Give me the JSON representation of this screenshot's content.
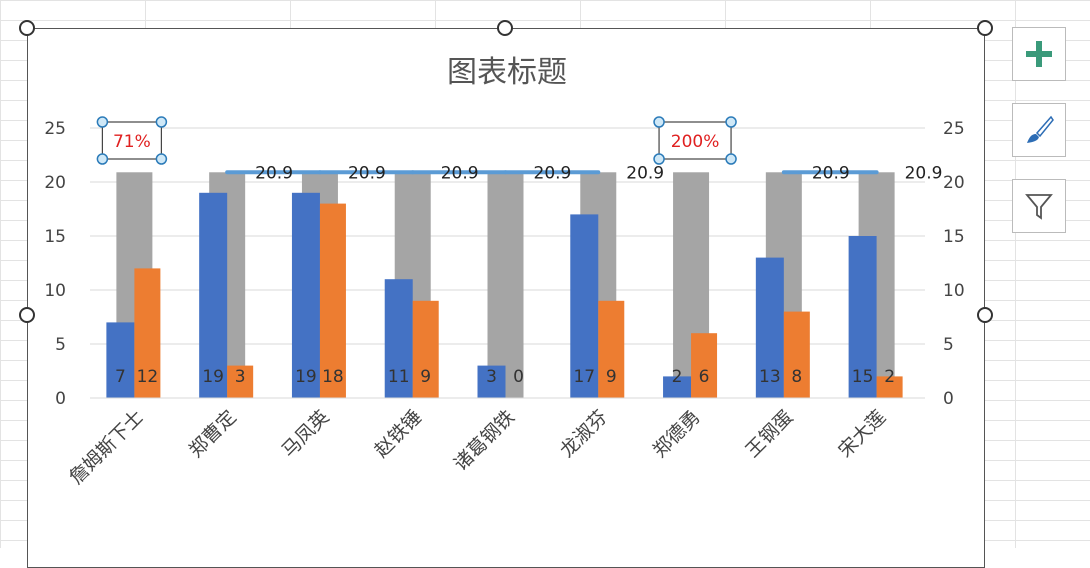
{
  "chart_data": {
    "type": "bar",
    "title": "图表标题",
    "categories": [
      "詹姆斯下士",
      "郑曹定",
      "马凤英",
      "赵铁锤",
      "诸葛钢铁",
      "龙淑芬",
      "郑德勇",
      "王钢蛋",
      "宋大莲"
    ],
    "series": [
      {
        "values": [
          7,
          19,
          19,
          11,
          3,
          17,
          2,
          13,
          15
        ],
        "color": "#4472c4",
        "axis": "primary",
        "labels": true
      },
      {
        "values": [
          12,
          3,
          18,
          9,
          0,
          9,
          6,
          8,
          2
        ],
        "color": "#ed7d31",
        "axis": "primary",
        "labels": true
      },
      {
        "values": [
          20.9,
          20.9,
          20.9,
          20.9,
          20.9,
          20.9,
          20.9,
          20.9,
          20.9
        ],
        "color": "#a5a5a5",
        "axis": "secondary",
        "labels": false
      },
      {
        "type": "line",
        "values": [
          null,
          20.9,
          20.9,
          20.9,
          20.9,
          20.9,
          null,
          20.9,
          20.9
        ],
        "color": "#5b9bd5",
        "labels": true
      }
    ],
    "ylim": [
      0,
      25
    ],
    "yticks": [
      0,
      5,
      10,
      15,
      20,
      25
    ],
    "y2lim": [
      0,
      25
    ],
    "y2ticks": [
      0,
      5,
      10,
      15,
      20,
      25
    ],
    "grid": true,
    "annotations": [
      {
        "text": "71%",
        "category": "詹姆斯下士",
        "color": "#e02020"
      },
      {
        "text": "200%",
        "category": "郑德勇",
        "color": "#e02020"
      }
    ]
  },
  "toolbar": {
    "buttons": [
      "plus-icon",
      "brush-icon",
      "filter-icon"
    ],
    "accent": "#3a9a7a"
  }
}
